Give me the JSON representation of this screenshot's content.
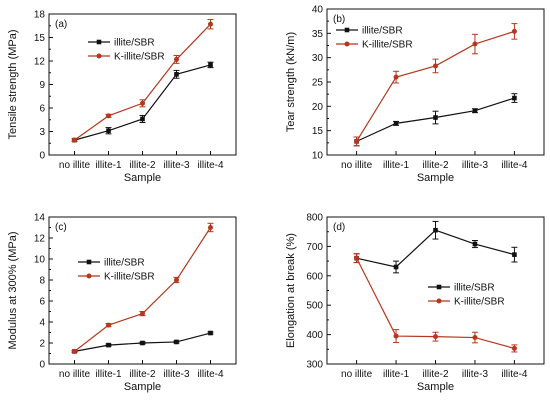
{
  "chart_data": [
    {
      "type": "line",
      "panel_label": "(a)",
      "categories": [
        "no illite",
        "illite-1",
        "illite-2",
        "illite-3",
        "illite-4"
      ],
      "xlabel": "Sample",
      "ylabel": "Tensile strength (MPa)",
      "ylim": [
        0,
        18
      ],
      "yticks": [
        0,
        3,
        6,
        9,
        12,
        15,
        18
      ],
      "legend_position": "upper-left",
      "series": [
        {
          "name": "illite/SBR",
          "color": "#111111",
          "marker": "square",
          "values": [
            1.9,
            3.1,
            4.6,
            10.3,
            11.5
          ],
          "errors": [
            0.15,
            0.4,
            0.45,
            0.5,
            0.35
          ]
        },
        {
          "name": "K-illite/SBR",
          "color": "#b5381e",
          "marker": "circle",
          "values": [
            1.9,
            5.0,
            6.6,
            12.2,
            16.7
          ],
          "errors": [
            0.15,
            0.2,
            0.45,
            0.5,
            0.6
          ]
        }
      ]
    },
    {
      "type": "line",
      "panel_label": "(b)",
      "categories": [
        "no illite",
        "illite-1",
        "illite-2",
        "illite-3",
        "illite-4"
      ],
      "xlabel": "Sample",
      "ylabel": "Tear strength (kN/m)",
      "ylim": [
        10,
        40
      ],
      "yticks": [
        10,
        15,
        20,
        25,
        30,
        35,
        40
      ],
      "legend_position": "upper-left",
      "series": [
        {
          "name": "illite/SBR",
          "color": "#111111",
          "marker": "square",
          "values": [
            12.8,
            16.5,
            17.7,
            19.1,
            21.7
          ],
          "errors": [
            0.9,
            0.4,
            1.3,
            0.4,
            0.9
          ]
        },
        {
          "name": "K-illite/SBR",
          "color": "#b5381e",
          "marker": "circle",
          "values": [
            12.8,
            26.0,
            28.3,
            32.8,
            35.4
          ],
          "errors": [
            0.9,
            1.2,
            1.4,
            2.0,
            1.6
          ]
        }
      ]
    },
    {
      "type": "line",
      "panel_label": "(c)",
      "categories": [
        "no illite",
        "illite-1",
        "illite-2",
        "illite-3",
        "illite-4"
      ],
      "xlabel": "Sample",
      "ylabel": "Modulus at 300% (MPa)",
      "ylim": [
        0,
        14
      ],
      "yticks": [
        0,
        2,
        4,
        6,
        8,
        10,
        12,
        14
      ],
      "legend_position": "middle-left",
      "series": [
        {
          "name": "illite/SBR",
          "color": "#111111",
          "marker": "square",
          "values": [
            1.2,
            1.8,
            2.0,
            2.1,
            2.95
          ],
          "errors": [
            0.08,
            0.1,
            0.1,
            0.1,
            0.1
          ]
        },
        {
          "name": "K-illite/SBR",
          "color": "#b5381e",
          "marker": "circle",
          "values": [
            1.2,
            3.7,
            4.8,
            8.0,
            13.0
          ],
          "errors": [
            0.08,
            0.15,
            0.2,
            0.25,
            0.4
          ]
        }
      ]
    },
    {
      "type": "line",
      "panel_label": "(d)",
      "categories": [
        "no illite",
        "illite-1",
        "illite-2",
        "illite-3",
        "illite-4"
      ],
      "xlabel": "Sample",
      "ylabel": "Elongation at break (%)",
      "ylim": [
        300,
        800
      ],
      "yticks": [
        300,
        400,
        500,
        600,
        700,
        800
      ],
      "legend_position": "middle-right",
      "series": [
        {
          "name": "illite/SBR",
          "color": "#111111",
          "marker": "square",
          "values": [
            660,
            630,
            755,
            708,
            672
          ],
          "errors": [
            15,
            20,
            30,
            12,
            25
          ]
        },
        {
          "name": "K-illite/SBR",
          "color": "#b5381e",
          "marker": "circle",
          "values": [
            660,
            395,
            393,
            390,
            353
          ],
          "errors": [
            15,
            22,
            15,
            18,
            12
          ]
        }
      ]
    }
  ]
}
